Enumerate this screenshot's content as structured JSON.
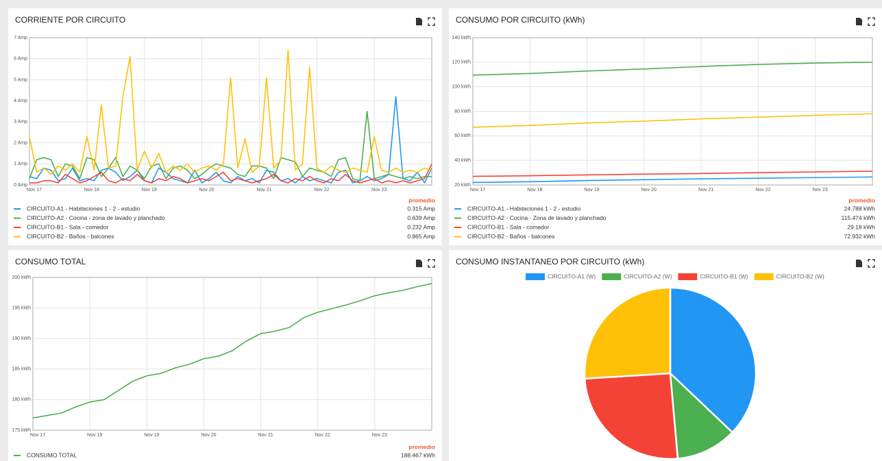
{
  "chart_data": [
    {
      "type": "line",
      "title": "CORRIENTE POR CIRCUITO",
      "grid": true,
      "xlim": [
        17,
        24
      ],
      "xticks": [
        {
          "value": 17,
          "label": "Nov 17"
        },
        {
          "value": 18,
          "label": "Nov 18"
        },
        {
          "value": 19,
          "label": "Nov 19"
        },
        {
          "value": 20,
          "label": "Nov 20"
        },
        {
          "value": 21,
          "label": "Nov 21"
        },
        {
          "value": 22,
          "label": "Nov 22"
        },
        {
          "value": 23,
          "label": "Nov 23"
        }
      ],
      "ylim": [
        0,
        7
      ],
      "yticks": [
        {
          "value": 0,
          "label": "0 Amp"
        },
        {
          "value": 1,
          "label": "1 Amp"
        },
        {
          "value": 2,
          "label": "2 Amp"
        },
        {
          "value": 3,
          "label": "3 Amp"
        },
        {
          "value": 4,
          "label": "4 Amp"
        },
        {
          "value": 5,
          "label": "5 Amp"
        },
        {
          "value": 6,
          "label": "6 Amp"
        },
        {
          "value": 7,
          "label": "7 Amp"
        }
      ],
      "average_header": "promedio",
      "x": [
        17,
        17.125,
        17.25,
        17.375,
        17.5,
        17.625,
        17.75,
        17.875,
        18,
        18.125,
        18.25,
        18.375,
        18.5,
        18.625,
        18.75,
        18.875,
        19,
        19.125,
        19.25,
        19.375,
        19.5,
        19.625,
        19.75,
        19.875,
        20,
        20.125,
        20.25,
        20.375,
        20.5,
        20.625,
        20.75,
        20.875,
        21,
        21.125,
        21.25,
        21.375,
        21.5,
        21.625,
        21.75,
        21.875,
        22,
        22.125,
        22.25,
        22.375,
        22.5,
        22.625,
        22.75,
        22.875,
        23,
        23.125,
        23.25,
        23.375,
        23.5,
        23.625,
        23.75,
        23.875,
        24
      ],
      "series": [
        {
          "name": "CIRCUITO-A1 - Habitaciones 1 - 2 - estudio",
          "color": "#2196f3",
          "average": "0.315 Amp",
          "values": [
            0.4,
            0.3,
            0.8,
            0.7,
            0.2,
            0.3,
            0.8,
            0.2,
            0.3,
            0.2,
            0.7,
            0.8,
            0.6,
            0.2,
            0.4,
            0.7,
            0.2,
            0.1,
            0.8,
            0.6,
            0.3,
            0.2,
            0.1,
            0.7,
            0.1,
            0.3,
            0.6,
            0.2,
            0.1,
            0.4,
            0.2,
            0.3,
            0.1,
            0.7,
            0.6,
            0.2,
            0.3,
            0.1,
            0.4,
            0.2,
            0.3,
            0.2,
            0.1,
            0.6,
            0.7,
            0.1,
            0.2,
            0.4,
            0.2,
            0.3,
            0.5,
            4.2,
            0.3,
            0.2,
            0.6,
            0.1,
            0.8
          ]
        },
        {
          "name": "CIRCUITO-A2 - Cocina - zona de lavado y planchado",
          "color": "#4caf50",
          "average": "0.639 Amp",
          "values": [
            0.3,
            1.2,
            1.3,
            1.2,
            0.4,
            1.0,
            0.9,
            0.3,
            1.3,
            1.2,
            0.4,
            0.8,
            1.3,
            0.4,
            0.9,
            0.7,
            0.3,
            0.9,
            1.0,
            0.3,
            0.8,
            0.9,
            0.7,
            0.3,
            0.5,
            0.8,
            1.0,
            0.9,
            0.8,
            0.5,
            0.4,
            0.9,
            0.9,
            0.8,
            0.3,
            1.3,
            1.2,
            1.1,
            0.4,
            0.8,
            0.7,
            0.6,
            0.4,
            1.2,
            1.3,
            0.3,
            0.2,
            3.5,
            0.3,
            0.4,
            0.5,
            0.4,
            0.3,
            0.4,
            0.3,
            0.4,
            0.4
          ]
        },
        {
          "name": "CIRCUITO-B1 - Sala - comedor",
          "color": "#f44336",
          "average": "0.232 Amp",
          "values": [
            0.1,
            0.1,
            0.2,
            0.2,
            0.1,
            0.5,
            0.3,
            0.1,
            0.2,
            0.4,
            0.6,
            0.2,
            0.1,
            0.3,
            0.2,
            0.5,
            0.2,
            0.1,
            0.3,
            0.2,
            0.4,
            0.3,
            0.1,
            0.2,
            0.3,
            0.2,
            0.4,
            0.6,
            0.2,
            0.3,
            0.2,
            0.1,
            0.2,
            0.3,
            0.5,
            0.2,
            0.1,
            0.3,
            0.2,
            0.4,
            0.2,
            0.1,
            0.3,
            0.2,
            0.5,
            0.2,
            0.1,
            0.2,
            0.3,
            0.1,
            0.2,
            0.1,
            0.2,
            0.1,
            0.2,
            0.3,
            1.0
          ]
        },
        {
          "name": "CIRCUITO-B2 - Baños - balcones",
          "color": "#ffc107",
          "average": "0.865 Amp",
          "values": [
            2.3,
            0.6,
            0.8,
            0.5,
            0.9,
            0.7,
            1.0,
            0.6,
            2.3,
            0.7,
            3.8,
            0.8,
            0.9,
            4.2,
            6.1,
            0.7,
            1.6,
            0.8,
            1.5,
            0.6,
            0.9,
            0.7,
            1.0,
            0.6,
            0.8,
            0.9,
            0.7,
            1.0,
            5.1,
            0.8,
            2.2,
            0.6,
            0.9,
            5.1,
            0.8,
            1.2,
            6.4,
            0.7,
            1.0,
            5.6,
            0.8,
            0.6,
            0.9,
            0.7,
            0.6,
            0.8,
            0.7,
            0.6,
            2.3,
            0.7,
            0.6,
            0.8,
            0.6,
            0.7,
            0.6,
            0.8,
            0.7
          ]
        }
      ]
    },
    {
      "type": "line",
      "title": "CONSUMO POR CIRCUITO (kWh)",
      "grid": true,
      "xlim": [
        17,
        24
      ],
      "xticks": [
        {
          "value": 17,
          "label": "Nov 17"
        },
        {
          "value": 18,
          "label": "Nov 18"
        },
        {
          "value": 19,
          "label": "Nov 19"
        },
        {
          "value": 20,
          "label": "Nov 20"
        },
        {
          "value": 21,
          "label": "Nov 21"
        },
        {
          "value": 22,
          "label": "Nov 22"
        },
        {
          "value": 23,
          "label": "Nov 23"
        }
      ],
      "ylim": [
        20,
        140
      ],
      "yticks": [
        {
          "value": 20,
          "label": "20 kWh"
        },
        {
          "value": 40,
          "label": "40 kWh"
        },
        {
          "value": 60,
          "label": "60 kWh"
        },
        {
          "value": 80,
          "label": "80 kWh"
        },
        {
          "value": 100,
          "label": "100 kWh"
        },
        {
          "value": 120,
          "label": "120 kWh"
        },
        {
          "value": 140,
          "label": "140 kWh"
        }
      ],
      "average_header": "promedio",
      "x": [
        17,
        18,
        19,
        20,
        21,
        22,
        23,
        24
      ],
      "series": [
        {
          "name": "CIRCUITO-A1 - Habitaciones 1 - 2 - estudio",
          "color": "#2196f3",
          "average": "24.788 kWh",
          "values": [
            22.0,
            22.6,
            23.6,
            24.3,
            25.0,
            25.5,
            26.0,
            26.5
          ]
        },
        {
          "name": "CIRCUITO-A2 - Cocina - Zona de lavado y planchado",
          "color": "#4caf50",
          "average": "115.474 kWh",
          "values": [
            109.5,
            110.8,
            112.8,
            114.5,
            116.5,
            118.2,
            119.3,
            120.0
          ]
        },
        {
          "name": "CIRCUITO-B1 - Sala - comedor",
          "color": "#f44336",
          "average": "29.18 kWh",
          "values": [
            27.0,
            27.5,
            28.2,
            28.8,
            29.3,
            30.0,
            30.6,
            31.2
          ]
        },
        {
          "name": "CIRCUITO-B2 - Baños - balcones",
          "color": "#ffc107",
          "average": "72.932 kWh",
          "values": [
            67.0,
            68.5,
            70.5,
            72.0,
            73.8,
            75.2,
            76.7,
            78.0
          ]
        }
      ]
    },
    {
      "type": "line",
      "title": "CONSUMO TOTAL",
      "grid": true,
      "xlim": [
        17,
        24
      ],
      "xticks": [
        {
          "value": 17,
          "label": "Nov 17"
        },
        {
          "value": 18,
          "label": "Nov 18"
        },
        {
          "value": 19,
          "label": "Nov 19"
        },
        {
          "value": 20,
          "label": "Nov 20"
        },
        {
          "value": 21,
          "label": "Nov 21"
        },
        {
          "value": 22,
          "label": "Nov 22"
        },
        {
          "value": 23,
          "label": "Nov 23"
        }
      ],
      "ylim": [
        175,
        200
      ],
      "yticks": [
        {
          "value": 175,
          "label": "175 kWh"
        },
        {
          "value": 180,
          "label": "180 kWh"
        },
        {
          "value": 185,
          "label": "185 kWh"
        },
        {
          "value": 190,
          "label": "190 kWh"
        },
        {
          "value": 195,
          "label": "195 kWh"
        },
        {
          "value": 200,
          "label": "200 kWh"
        }
      ],
      "average_header": "promedio",
      "x": [
        17,
        17.25,
        17.5,
        17.75,
        18,
        18.25,
        18.5,
        18.75,
        19,
        19.25,
        19.5,
        19.75,
        20,
        20.25,
        20.5,
        20.75,
        21,
        21.25,
        21.5,
        21.75,
        22,
        22.25,
        22.5,
        22.75,
        23,
        23.25,
        23.5,
        23.75,
        24
      ],
      "series": [
        {
          "name": "CONSUMO TOTAL",
          "color": "#4caf50",
          "average": "188.467 kWh",
          "values": [
            177.0,
            177.4,
            177.8,
            178.8,
            179.6,
            180.0,
            181.5,
            183.0,
            183.9,
            184.3,
            185.2,
            185.8,
            186.7,
            187.1,
            188.0,
            189.6,
            190.8,
            191.2,
            191.8,
            193.4,
            194.3,
            194.9,
            195.5,
            196.2,
            197.0,
            197.5,
            197.9,
            198.5,
            199.0
          ]
        }
      ]
    },
    {
      "type": "pie",
      "title": "CONSUMO INSTANTANEO POR CIRCUITO (kWh)",
      "categories": [
        "CIRCUITO-A1 (W)",
        "CIRCUITO-A2 (W)",
        "CIRCUITO-B1 (W)",
        "CIRCUITO-B2 (W)"
      ],
      "values": [
        37.1,
        11.5,
        25.4,
        26.0
      ],
      "colors": [
        "#2196f3",
        "#4caf50",
        "#f44336",
        "#ffc107"
      ]
    }
  ]
}
